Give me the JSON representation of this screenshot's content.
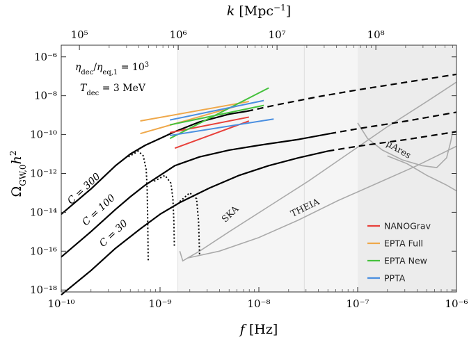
{
  "chart_data": {
    "type": "line",
    "xlabel": "f [Hz]",
    "ylabel": "Ω_GW,0 h²",
    "top_axis_label": "k [Mpc⁻¹]",
    "x_scale": "log",
    "y_scale": "log",
    "xlim": [
      -10,
      -6
    ],
    "ylim": [
      -18.1,
      -5.4
    ],
    "x_ticks": [
      {
        "value": -10,
        "label": "10⁻¹⁰"
      },
      {
        "value": -9,
        "label": "10⁻⁹"
      },
      {
        "value": -8,
        "label": "10⁻⁸"
      },
      {
        "value": -7,
        "label": "10⁻⁷"
      },
      {
        "value": -6,
        "label": "10⁻⁶"
      }
    ],
    "y_ticks": [
      {
        "value": -6,
        "label": "10⁻⁶"
      },
      {
        "value": -8,
        "label": "10⁻⁸"
      },
      {
        "value": -10,
        "label": "10⁻¹⁰"
      },
      {
        "value": -12,
        "label": "10⁻¹²"
      },
      {
        "value": -14,
        "label": "10⁻¹⁴"
      },
      {
        "value": -16,
        "label": "10⁻¹⁶"
      },
      {
        "value": -18,
        "label": "10⁻¹⁸"
      }
    ],
    "top_ticks": [
      {
        "value": -9.816,
        "label": "10⁵"
      },
      {
        "value": -8.816,
        "label": "10⁶"
      },
      {
        "value": -7.816,
        "label": "10⁷"
      },
      {
        "value": -6.816,
        "label": "10⁸"
      }
    ],
    "annotations": {
      "line1": "η_dec/η_eq,1 = 10³",
      "line2": "T_dec = 3 MeV"
    },
    "curve_labels": [
      "C = 300",
      "C = 100",
      "C = 30"
    ],
    "regions": [
      {
        "name": "SKA",
        "label": "SKA"
      },
      {
        "name": "THEIA",
        "label": "THEIA"
      },
      {
        "name": "muAres",
        "label": "μAres"
      }
    ],
    "series": [
      {
        "name": "C = 300",
        "solid": [
          [
            -10,
            -14.1
          ],
          [
            -9.7,
            -12.8
          ],
          [
            -9.45,
            -11.6
          ],
          [
            -9.3,
            -11.0
          ],
          [
            -9.15,
            -10.55
          ],
          [
            -9.0,
            -10.2
          ],
          [
            -8.85,
            -9.85
          ],
          [
            -8.6,
            -9.35
          ],
          [
            -8.3,
            -8.95
          ],
          [
            -8.12,
            -8.8
          ]
        ],
        "dashed": [
          [
            -8.12,
            -8.8
          ],
          [
            -7.8,
            -8.45
          ],
          [
            -7.4,
            -8.05
          ],
          [
            -7.0,
            -7.7
          ],
          [
            -6.5,
            -7.3
          ],
          [
            -6.0,
            -6.9
          ]
        ],
        "dotted": [
          [
            -9.32,
            -11.15
          ],
          [
            -9.22,
            -10.85
          ],
          [
            -9.17,
            -11.1
          ],
          [
            -9.14,
            -11.8
          ],
          [
            -9.13,
            -12.8
          ],
          [
            -9.125,
            -14.5
          ],
          [
            -9.12,
            -16.5
          ]
        ]
      },
      {
        "name": "C = 100",
        "solid": [
          [
            -10,
            -16.3
          ],
          [
            -9.7,
            -15.0
          ],
          [
            -9.45,
            -13.85
          ],
          [
            -9.3,
            -13.2
          ],
          [
            -9.15,
            -12.6
          ],
          [
            -9.0,
            -12.1
          ],
          [
            -8.85,
            -11.6
          ],
          [
            -8.6,
            -11.15
          ],
          [
            -8.3,
            -10.8
          ],
          [
            -8.0,
            -10.55
          ],
          [
            -7.6,
            -10.25
          ],
          [
            -7.28,
            -9.95
          ]
        ],
        "dashed": [
          [
            -7.28,
            -9.95
          ],
          [
            -7.0,
            -9.7
          ],
          [
            -6.5,
            -9.3
          ],
          [
            -6.0,
            -8.85
          ]
        ],
        "dotted": [
          [
            -9.06,
            -12.4
          ],
          [
            -8.95,
            -12.1
          ],
          [
            -8.89,
            -12.5
          ],
          [
            -8.87,
            -13.3
          ],
          [
            -8.86,
            -14.5
          ],
          [
            -8.855,
            -15.8
          ]
        ]
      },
      {
        "name": "C = 30",
        "solid": [
          [
            -10,
            -18.25
          ],
          [
            -9.7,
            -17.0
          ],
          [
            -9.45,
            -15.85
          ],
          [
            -9.2,
            -14.85
          ],
          [
            -9.0,
            -14.1
          ],
          [
            -8.8,
            -13.5
          ],
          [
            -8.5,
            -12.75
          ],
          [
            -8.2,
            -12.1
          ],
          [
            -7.9,
            -11.6
          ],
          [
            -7.6,
            -11.2
          ],
          [
            -7.3,
            -10.85
          ]
        ],
        "dashed": [
          [
            -7.3,
            -10.85
          ],
          [
            -7.0,
            -10.6
          ],
          [
            -6.5,
            -10.25
          ],
          [
            -6.0,
            -9.85
          ]
        ],
        "dotted": [
          [
            -8.8,
            -13.45
          ],
          [
            -8.7,
            -13.0
          ],
          [
            -8.63,
            -13.3
          ],
          [
            -8.61,
            -14.5
          ],
          [
            -8.6,
            -16.2
          ]
        ]
      }
    ],
    "pta_lines": [
      {
        "name": "NANOGrav",
        "color": "#e8403a",
        "start": [
          -8.85,
          -10.7
        ],
        "end": [
          -8.1,
          -9.3
        ]
      },
      {
        "name": "NANOGrav",
        "color": "#e8403a",
        "start": [
          -8.9,
          -9.9
        ],
        "end": [
          -8.1,
          -9.1
        ]
      },
      {
        "name": "EPTA Full",
        "color": "#efa84a",
        "start": [
          -9.2,
          -9.3
        ],
        "end": [
          -8.1,
          -8.3
        ]
      },
      {
        "name": "EPTA Full",
        "color": "#efa84a",
        "start": [
          -9.2,
          -9.95
        ],
        "end": [
          -8.2,
          -8.5
        ]
      },
      {
        "name": "EPTA New",
        "color": "#45c13d",
        "start": [
          -8.9,
          -10.2
        ],
        "end": [
          -7.9,
          -7.6
        ]
      },
      {
        "name": "EPTA New",
        "color": "#45c13d",
        "start": [
          -8.9,
          -9.5
        ],
        "end": [
          -7.95,
          -8.5
        ]
      },
      {
        "name": "PPTA",
        "color": "#4a8fe0",
        "start": [
          -8.9,
          -10.05
        ],
        "end": [
          -7.85,
          -9.2
        ]
      },
      {
        "name": "PPTA",
        "color": "#4a8fe0",
        "start": [
          -8.9,
          -9.25
        ],
        "end": [
          -7.95,
          -8.25
        ]
      }
    ],
    "legend": [
      {
        "name": "NANOGrav",
        "color": "#e8403a"
      },
      {
        "name": "EPTA Full",
        "color": "#efa84a"
      },
      {
        "name": "EPTA New",
        "color": "#45c13d"
      },
      {
        "name": "PPTA",
        "color": "#4a8fe0"
      }
    ],
    "legend_position": "bottom-right"
  }
}
